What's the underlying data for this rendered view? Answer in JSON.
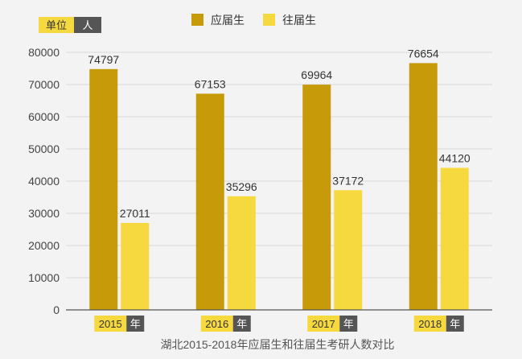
{
  "unit": {
    "label": "单位",
    "value": "人"
  },
  "legend": [
    {
      "label": "应届生",
      "color": "#c79a0a"
    },
    {
      "label": "往届生",
      "color": "#f6d83f"
    }
  ],
  "year_suffix": "年",
  "caption": "湖北2015-2018年应届生和往届生考研人数对比",
  "chart_data": {
    "type": "bar",
    "categories": [
      "2015",
      "2016",
      "2017",
      "2018"
    ],
    "series": [
      {
        "name": "应届生",
        "values": [
          74797,
          67153,
          69964,
          76654
        ],
        "color": "#c79a0a"
      },
      {
        "name": "往届生",
        "values": [
          27011,
          35296,
          37172,
          44120
        ],
        "color": "#f6d83f"
      }
    ],
    "ylim": [
      0,
      80000
    ],
    "yticks": [
      0,
      10000,
      20000,
      30000,
      40000,
      50000,
      60000,
      70000,
      80000
    ],
    "grid": true,
    "legend_position": "top"
  }
}
